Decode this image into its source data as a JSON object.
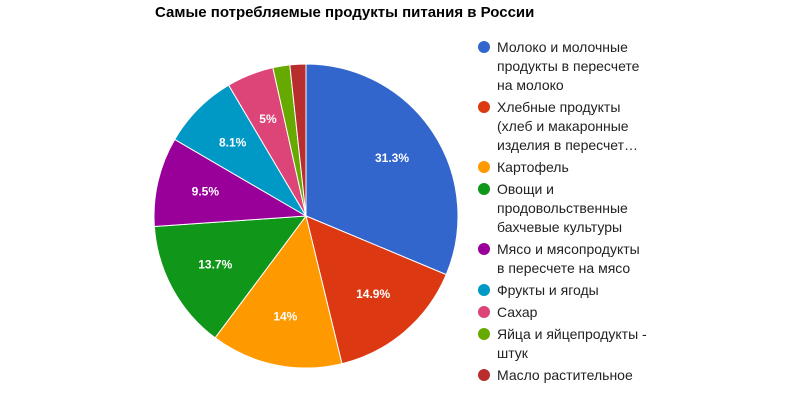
{
  "chart_data": {
    "type": "pie",
    "title": "Самые потребляемые продукты питания в России",
    "categories": [
      "Молоко и молочные продукты в пересчете на молоко",
      "Хлебные продукты (хлеб и макаронные изделия в пересчет…",
      "Картофель",
      "Овощи и продовольственные бахчевые культуры",
      "Мясо и мясопродукты в пересчете на мясо",
      "Фрукты и ягоды",
      "Сахар",
      "Яйца и яйцепродукты - штук",
      "Масло растительное"
    ],
    "values": [
      31.3,
      14.9,
      14,
      13.7,
      9.5,
      8.1,
      5,
      1.8,
      1.7
    ],
    "value_labels": [
      "31.3%",
      "14.9%",
      "14%",
      "13.7%",
      "9.5%",
      "8.1%",
      "5%",
      null,
      null
    ],
    "colors": [
      "#3366cc",
      "#dc3912",
      "#ff9900",
      "#109618",
      "#990099",
      "#0099c6",
      "#dd4477",
      "#66aa00",
      "#b82e2e"
    ],
    "legend": "right"
  }
}
